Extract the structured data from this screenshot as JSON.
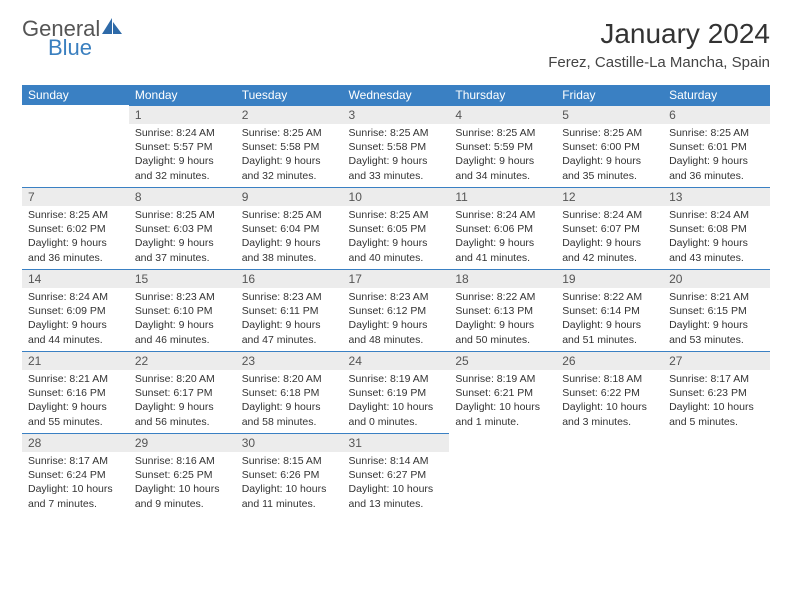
{
  "brand": {
    "part1": "General",
    "part2": "Blue",
    "part1_color": "#555",
    "part2_color": "#3a7fbf"
  },
  "title": "January 2024",
  "location": "Ferez, Castille-La Mancha, Spain",
  "header_bg": "#3a80c3",
  "daynum_bg": "#ececec",
  "border_color": "#3a80c3",
  "days_of_week": [
    "Sunday",
    "Monday",
    "Tuesday",
    "Wednesday",
    "Thursday",
    "Friday",
    "Saturday"
  ],
  "weeks": [
    [
      null,
      {
        "n": "1",
        "sr": "Sunrise: 8:24 AM",
        "ss": "Sunset: 5:57 PM",
        "dl": "Daylight: 9 hours and 32 minutes."
      },
      {
        "n": "2",
        "sr": "Sunrise: 8:25 AM",
        "ss": "Sunset: 5:58 PM",
        "dl": "Daylight: 9 hours and 32 minutes."
      },
      {
        "n": "3",
        "sr": "Sunrise: 8:25 AM",
        "ss": "Sunset: 5:58 PM",
        "dl": "Daylight: 9 hours and 33 minutes."
      },
      {
        "n": "4",
        "sr": "Sunrise: 8:25 AM",
        "ss": "Sunset: 5:59 PM",
        "dl": "Daylight: 9 hours and 34 minutes."
      },
      {
        "n": "5",
        "sr": "Sunrise: 8:25 AM",
        "ss": "Sunset: 6:00 PM",
        "dl": "Daylight: 9 hours and 35 minutes."
      },
      {
        "n": "6",
        "sr": "Sunrise: 8:25 AM",
        "ss": "Sunset: 6:01 PM",
        "dl": "Daylight: 9 hours and 36 minutes."
      }
    ],
    [
      {
        "n": "7",
        "sr": "Sunrise: 8:25 AM",
        "ss": "Sunset: 6:02 PM",
        "dl": "Daylight: 9 hours and 36 minutes."
      },
      {
        "n": "8",
        "sr": "Sunrise: 8:25 AM",
        "ss": "Sunset: 6:03 PM",
        "dl": "Daylight: 9 hours and 37 minutes."
      },
      {
        "n": "9",
        "sr": "Sunrise: 8:25 AM",
        "ss": "Sunset: 6:04 PM",
        "dl": "Daylight: 9 hours and 38 minutes."
      },
      {
        "n": "10",
        "sr": "Sunrise: 8:25 AM",
        "ss": "Sunset: 6:05 PM",
        "dl": "Daylight: 9 hours and 40 minutes."
      },
      {
        "n": "11",
        "sr": "Sunrise: 8:24 AM",
        "ss": "Sunset: 6:06 PM",
        "dl": "Daylight: 9 hours and 41 minutes."
      },
      {
        "n": "12",
        "sr": "Sunrise: 8:24 AM",
        "ss": "Sunset: 6:07 PM",
        "dl": "Daylight: 9 hours and 42 minutes."
      },
      {
        "n": "13",
        "sr": "Sunrise: 8:24 AM",
        "ss": "Sunset: 6:08 PM",
        "dl": "Daylight: 9 hours and 43 minutes."
      }
    ],
    [
      {
        "n": "14",
        "sr": "Sunrise: 8:24 AM",
        "ss": "Sunset: 6:09 PM",
        "dl": "Daylight: 9 hours and 44 minutes."
      },
      {
        "n": "15",
        "sr": "Sunrise: 8:23 AM",
        "ss": "Sunset: 6:10 PM",
        "dl": "Daylight: 9 hours and 46 minutes."
      },
      {
        "n": "16",
        "sr": "Sunrise: 8:23 AM",
        "ss": "Sunset: 6:11 PM",
        "dl": "Daylight: 9 hours and 47 minutes."
      },
      {
        "n": "17",
        "sr": "Sunrise: 8:23 AM",
        "ss": "Sunset: 6:12 PM",
        "dl": "Daylight: 9 hours and 48 minutes."
      },
      {
        "n": "18",
        "sr": "Sunrise: 8:22 AM",
        "ss": "Sunset: 6:13 PM",
        "dl": "Daylight: 9 hours and 50 minutes."
      },
      {
        "n": "19",
        "sr": "Sunrise: 8:22 AM",
        "ss": "Sunset: 6:14 PM",
        "dl": "Daylight: 9 hours and 51 minutes."
      },
      {
        "n": "20",
        "sr": "Sunrise: 8:21 AM",
        "ss": "Sunset: 6:15 PM",
        "dl": "Daylight: 9 hours and 53 minutes."
      }
    ],
    [
      {
        "n": "21",
        "sr": "Sunrise: 8:21 AM",
        "ss": "Sunset: 6:16 PM",
        "dl": "Daylight: 9 hours and 55 minutes."
      },
      {
        "n": "22",
        "sr": "Sunrise: 8:20 AM",
        "ss": "Sunset: 6:17 PM",
        "dl": "Daylight: 9 hours and 56 minutes."
      },
      {
        "n": "23",
        "sr": "Sunrise: 8:20 AM",
        "ss": "Sunset: 6:18 PM",
        "dl": "Daylight: 9 hours and 58 minutes."
      },
      {
        "n": "24",
        "sr": "Sunrise: 8:19 AM",
        "ss": "Sunset: 6:19 PM",
        "dl": "Daylight: 10 hours and 0 minutes."
      },
      {
        "n": "25",
        "sr": "Sunrise: 8:19 AM",
        "ss": "Sunset: 6:21 PM",
        "dl": "Daylight: 10 hours and 1 minute."
      },
      {
        "n": "26",
        "sr": "Sunrise: 8:18 AM",
        "ss": "Sunset: 6:22 PM",
        "dl": "Daylight: 10 hours and 3 minutes."
      },
      {
        "n": "27",
        "sr": "Sunrise: 8:17 AM",
        "ss": "Sunset: 6:23 PM",
        "dl": "Daylight: 10 hours and 5 minutes."
      }
    ],
    [
      {
        "n": "28",
        "sr": "Sunrise: 8:17 AM",
        "ss": "Sunset: 6:24 PM",
        "dl": "Daylight: 10 hours and 7 minutes."
      },
      {
        "n": "29",
        "sr": "Sunrise: 8:16 AM",
        "ss": "Sunset: 6:25 PM",
        "dl": "Daylight: 10 hours and 9 minutes."
      },
      {
        "n": "30",
        "sr": "Sunrise: 8:15 AM",
        "ss": "Sunset: 6:26 PM",
        "dl": "Daylight: 10 hours and 11 minutes."
      },
      {
        "n": "31",
        "sr": "Sunrise: 8:14 AM",
        "ss": "Sunset: 6:27 PM",
        "dl": "Daylight: 10 hours and 13 minutes."
      },
      null,
      null,
      null
    ]
  ]
}
